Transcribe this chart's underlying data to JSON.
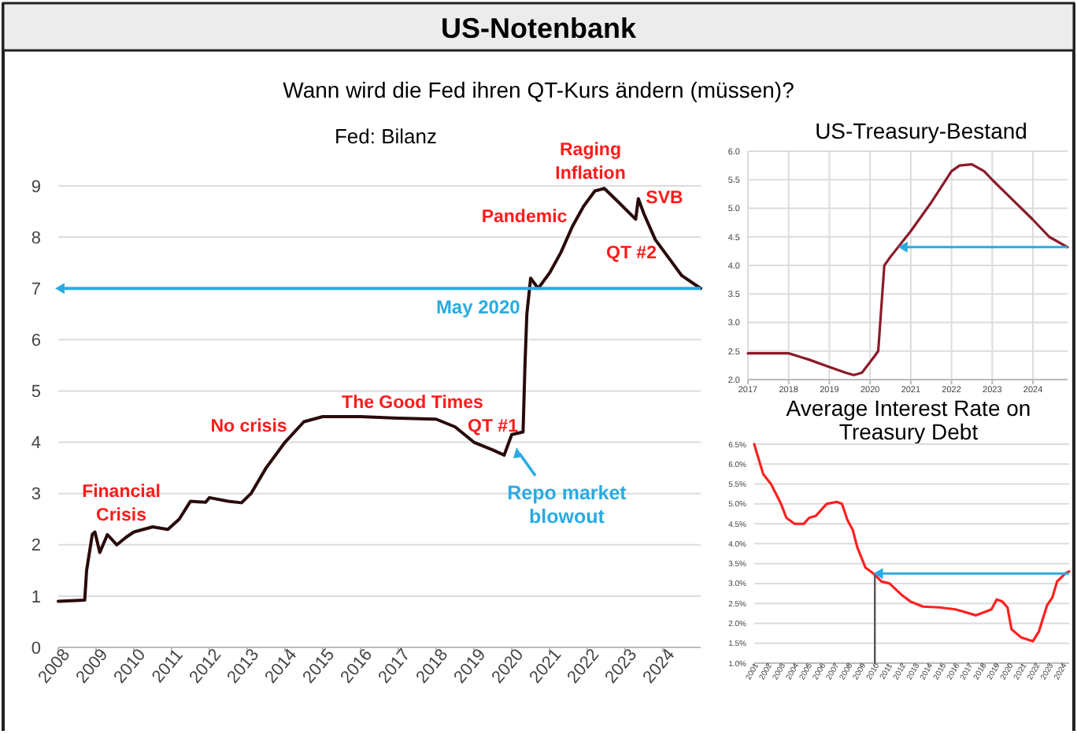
{
  "chart_data": [
    {
      "type": "other",
      "title": "US-Notenbank",
      "subtitle": "Wann wird die Fed ihren QT-Kurs ändern (müssen)?"
    },
    {
      "type": "line",
      "title": "Fed: Bilanz",
      "x": [
        2008,
        2008.7,
        2008.75,
        2008.9,
        2008.97,
        2009.1,
        2009.3,
        2009.55,
        2009.8,
        2010,
        2010.5,
        2010.9,
        2011.2,
        2011.5,
        2011.9,
        2012,
        2012.5,
        2012.85,
        2013.1,
        2013.5,
        2014,
        2014.5,
        2015,
        2016,
        2017,
        2018,
        2018.5,
        2019,
        2019.5,
        2019.8,
        2020,
        2020.3,
        2020.35,
        2020.4,
        2020.5,
        2020.7,
        2021,
        2021.3,
        2021.6,
        2021.9,
        2022.2,
        2022.45,
        2022.8,
        2023.28,
        2023.35,
        2023.5,
        2023.8,
        2024.2,
        2024.5,
        2025
      ],
      "series": [
        {
          "color": "#2a0a0a",
          "values": [
            0.9,
            0.92,
            1.5,
            2.2,
            2.25,
            1.85,
            2.2,
            2.0,
            2.15,
            2.25,
            2.35,
            2.3,
            2.5,
            2.85,
            2.83,
            2.92,
            2.85,
            2.82,
            3.0,
            3.5,
            4.0,
            4.4,
            4.5,
            4.5,
            4.47,
            4.45,
            4.3,
            4.0,
            3.85,
            3.75,
            4.15,
            4.2,
            5.5,
            6.5,
            7.2,
            7.0,
            7.3,
            7.7,
            8.2,
            8.6,
            8.9,
            8.95,
            8.7,
            8.35,
            8.75,
            8.45,
            7.95,
            7.55,
            7.25,
            7.0
          ]
        }
      ],
      "xlim": [
        2008,
        2025
      ],
      "ylim": [
        0,
        9
      ],
      "xticks": [
        2008,
        2009,
        2010,
        2011,
        2012,
        2013,
        2014,
        2015,
        2016,
        2017,
        2018,
        2019,
        2020,
        2021,
        2022,
        2023,
        2024
      ],
      "yticks": [
        0,
        1,
        2,
        3,
        4,
        5,
        6,
        7,
        8,
        9
      ],
      "grid": "y",
      "ref_lines": [
        {
          "axis": "y",
          "value": 7,
          "label": "May 2020",
          "color": "#29abe2"
        }
      ],
      "annotations": [
        "Financial\nCrisis",
        "No crisis",
        "The Good Times",
        "QT #1",
        "Pandemic",
        "Raging\nInflation",
        "SVB",
        "QT #2",
        "Repo market\nblowout"
      ]
    },
    {
      "type": "line",
      "title": "US-Treasury-Bestand",
      "x": [
        2017,
        2018,
        2018.5,
        2019,
        2019.4,
        2019.6,
        2019.8,
        2020.1,
        2020.2,
        2020.3,
        2020.35,
        2020.5,
        2021,
        2021.5,
        2022,
        2022.2,
        2022.5,
        2022.8,
        2023,
        2023.5,
        2024,
        2024.4,
        2024.85
      ],
      "series": [
        {
          "color": "#8b1a2a",
          "values": [
            2.46,
            2.46,
            2.35,
            2.22,
            2.12,
            2.08,
            2.12,
            2.4,
            2.5,
            3.5,
            4.0,
            4.15,
            4.6,
            5.1,
            5.65,
            5.75,
            5.77,
            5.65,
            5.5,
            5.15,
            4.8,
            4.5,
            4.32
          ]
        }
      ],
      "xlim": [
        2017,
        2024.85
      ],
      "ylim": [
        2,
        6
      ],
      "xticks": [
        2017,
        2018,
        2019,
        2020,
        2021,
        2022,
        2023,
        2024
      ],
      "yticks": [
        {
          "value": 2,
          "label": "2.0"
        },
        {
          "value": 2.5,
          "label": "2.5"
        },
        {
          "value": 3,
          "label": "3.0"
        },
        {
          "value": 3.5,
          "label": "3.5"
        },
        {
          "value": 4,
          "label": "4.0"
        },
        {
          "value": 4.5,
          "label": "4.5"
        },
        {
          "value": 5,
          "label": "5.0"
        },
        {
          "value": 5.5,
          "label": "5.5"
        },
        {
          "value": 6,
          "label": "6.0"
        }
      ],
      "grid": true,
      "ref_lines": [
        {
          "axis": "y",
          "value": 4.32,
          "label": null,
          "color": "#29abe2"
        }
      ]
    },
    {
      "type": "line",
      "title": "Average Interest Rate on Treasury Debt",
      "x": [
        2001,
        2001.67,
        2002.25,
        2003,
        2003.4,
        2004,
        2004.7,
        2005.1,
        2005.6,
        2006.4,
        2007.15,
        2007.55,
        2007.95,
        2008.35,
        2008.7,
        2009.3,
        2009.9,
        2010.5,
        2011.1,
        2012.05,
        2012.65,
        2013.6,
        2014.8,
        2016,
        2016.55,
        2017.55,
        2018.1,
        2018.7,
        2019.1,
        2019.5,
        2019.9,
        2020.2,
        2020.9,
        2021.8,
        2022.25,
        2022.85,
        2023.25,
        2023.6,
        2024.2,
        2024.5
      ],
      "series": [
        {
          "color": "#ff2020",
          "values": [
            6.5,
            5.75,
            5.5,
            5.0,
            4.65,
            4.5,
            4.5,
            4.65,
            4.7,
            5.0,
            5.05,
            5.0,
            4.6,
            4.35,
            3.9,
            3.4,
            3.25,
            3.05,
            3.0,
            2.7,
            2.55,
            2.42,
            2.4,
            2.35,
            2.3,
            2.2,
            2.27,
            2.35,
            2.6,
            2.55,
            2.4,
            1.85,
            1.65,
            1.55,
            1.8,
            2.45,
            2.65,
            3.05,
            3.25,
            3.3
          ]
        }
      ],
      "xlim": [
        2001,
        2024.5
      ],
      "ylim": [
        1,
        6.5
      ],
      "xticks": [
        2001,
        2002,
        2003,
        2004,
        2005,
        2006,
        2007,
        2008,
        2009,
        2010,
        2011,
        2012,
        2013,
        2014,
        2015,
        2016,
        2017,
        2018,
        2019,
        2020,
        2021,
        2022,
        2023,
        2024
      ],
      "yticks": [
        {
          "value": 1,
          "label": "1.0%"
        },
        {
          "value": 1.5,
          "label": "1.5%"
        },
        {
          "value": 2,
          "label": "2.0%"
        },
        {
          "value": 2.5,
          "label": "2.5%"
        },
        {
          "value": 3,
          "label": "3.0%"
        },
        {
          "value": 3.5,
          "label": "3.5%"
        },
        {
          "value": 4,
          "label": "4.0%"
        },
        {
          "value": 4.5,
          "label": "4.5%"
        },
        {
          "value": 5,
          "label": "5.0%"
        },
        {
          "value": 5.5,
          "label": "5.5%"
        },
        {
          "value": 6,
          "label": "6.0%"
        },
        {
          "value": 6.5,
          "label": "6.5%"
        }
      ],
      "grid": "y",
      "ref_lines": [
        {
          "axis": "y",
          "value": 3.25,
          "label": null,
          "color": "#29abe2"
        },
        {
          "axis": "x",
          "value": 2010,
          "label": null,
          "color": "#555555"
        }
      ]
    }
  ]
}
